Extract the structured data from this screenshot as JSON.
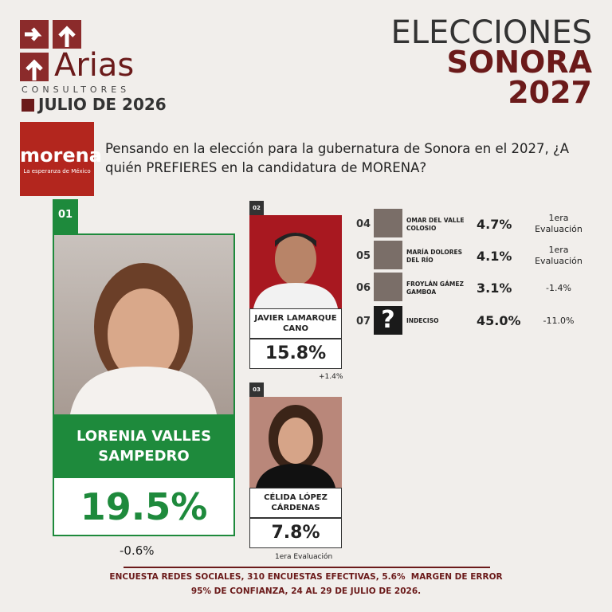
{
  "header": {
    "logo_name": "Arias",
    "logo_sub": "CONSULTORES",
    "date": "JULIO DE 2026",
    "title_line1": "ELECCIONES",
    "title_line2": "SONORA",
    "title_line3": "2027"
  },
  "party": {
    "name": "morena",
    "tagline": "La esperanza de México"
  },
  "question": "Pensando en la elección para la gubernatura de Sonora en el 2027, ¿A quién PREFIERES en la candidatura de MORENA?",
  "candidates": [
    {
      "rank": "01",
      "name": "LORENIA VALLES SAMPEDRO",
      "value": "19.5%",
      "change": "-0.6%"
    },
    {
      "rank": "02",
      "name": "JAVIER LAMARQUE CANO",
      "value": "15.8%",
      "change": "+1.4%"
    },
    {
      "rank": "03",
      "name": "CÉLIDA LÓPEZ CÁRDENAS",
      "value": "7.8%",
      "change": "1era Evaluación"
    },
    {
      "rank": "04",
      "name": "OMAR DEL VALLE COLOSIO",
      "value": "4.7%",
      "change": "1era Evaluación"
    },
    {
      "rank": "05",
      "name": "MARÍA DOLORES DEL RÍO",
      "value": "4.1%",
      "change": "1era Evaluación"
    },
    {
      "rank": "06",
      "name": "FROYLÁN GÁMEZ GAMBOA",
      "value": "3.1%",
      "change": "-1.4%"
    },
    {
      "rank": "07",
      "name": "INDECISO",
      "value": "45.0%",
      "change": "-11.0%",
      "icon": "?"
    }
  ],
  "footer": {
    "line1": "ENCUESTA REDES SOCIALES, 310 ENCUESTAS EFECTIVAS, 5.6%  MARGEN DE ERROR",
    "line2": "95% DE CONFIANZA, 24 AL 29 DE JULIO DE 2026."
  }
}
